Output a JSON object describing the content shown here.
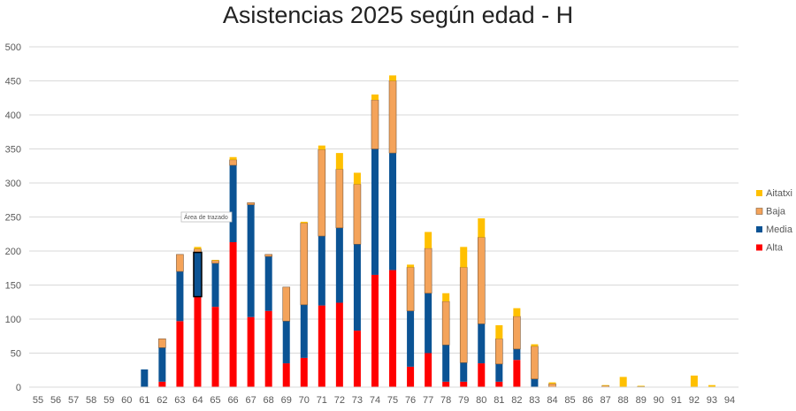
{
  "chart_data": {
    "type": "bar",
    "stacked": true,
    "title": "Asistencias 2025 según edad - H",
    "xlabel": "",
    "ylabel": "",
    "ylim": [
      0,
      500
    ],
    "yticks": [
      0,
      50,
      100,
      150,
      200,
      250,
      300,
      350,
      400,
      450,
      500
    ],
    "grid": true,
    "legend_position": "right",
    "tooltip": "Área de trazado",
    "categories": [
      "55",
      "56",
      "57",
      "58",
      "59",
      "60",
      "61",
      "62",
      "63",
      "64",
      "65",
      "66",
      "67",
      "68",
      "69",
      "70",
      "71",
      "72",
      "73",
      "74",
      "75",
      "76",
      "77",
      "78",
      "79",
      "80",
      "81",
      "82",
      "83",
      "84",
      "85",
      "86",
      "87",
      "88",
      "89",
      "90",
      "91",
      "92",
      "93",
      "94"
    ],
    "series": [
      {
        "name": "Alta",
        "color": "#ff0000",
        "values": [
          0,
          0,
          0,
          0,
          0,
          0,
          0,
          8,
          97,
          133,
          118,
          213,
          103,
          112,
          35,
          43,
          120,
          124,
          83,
          165,
          172,
          30,
          50,
          8,
          8,
          35,
          8,
          40,
          0,
          0,
          0,
          0,
          0,
          0,
          0,
          0,
          0,
          0,
          0,
          0
        ]
      },
      {
        "name": "Media",
        "color": "#0b5394",
        "values": [
          0,
          0,
          0,
          0,
          0,
          0,
          26,
          50,
          73,
          65,
          64,
          113,
          165,
          80,
          62,
          78,
          102,
          110,
          127,
          185,
          172,
          82,
          88,
          54,
          28,
          58,
          26,
          16,
          12,
          0,
          0,
          0,
          0,
          0,
          0,
          0,
          0,
          0,
          0,
          0
        ]
      },
      {
        "name": "Baja",
        "color": "#f4a35a",
        "values": [
          0,
          0,
          0,
          0,
          0,
          0,
          0,
          13,
          25,
          5,
          4,
          8,
          3,
          3,
          50,
          120,
          127,
          86,
          88,
          72,
          106,
          64,
          66,
          64,
          140,
          127,
          37,
          48,
          48,
          5,
          0,
          0,
          2,
          0,
          1,
          0,
          0,
          0,
          0,
          0
        ]
      },
      {
        "name": "Aitatxi",
        "color": "#ffc000",
        "values": [
          0,
          0,
          0,
          0,
          0,
          0,
          0,
          0,
          0,
          3,
          1,
          4,
          0,
          0,
          0,
          2,
          6,
          24,
          17,
          8,
          8,
          4,
          24,
          12,
          30,
          28,
          20,
          12,
          3,
          2,
          0,
          0,
          1,
          15,
          1,
          0,
          0,
          17,
          3,
          0
        ]
      }
    ]
  }
}
